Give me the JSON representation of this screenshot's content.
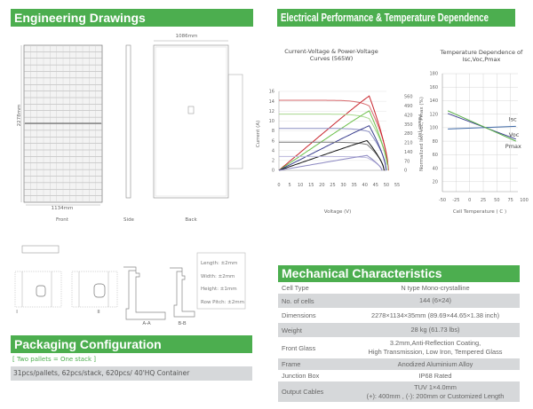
{
  "engineering": {
    "title": "Engineering Drawings",
    "dim_width_back": "1086mm",
    "dim_width_front": "1134mm",
    "dim_height": "2278mm",
    "view_front": "Front",
    "view_side": "Side",
    "view_back": "Back",
    "detail_labels": [
      "I",
      "II",
      "A-A",
      "B-B"
    ],
    "tolerances": [
      "Length: ±2mm",
      "Width: ±2mm",
      "Height: ±1mm",
      "Row Pitch: ±2mm"
    ]
  },
  "electrical": {
    "title": "Electrical Performance & Temperature Dependence"
  },
  "chart_data": [
    {
      "type": "line",
      "title": "Current-Voltage & Power-Voltage Curves (565W)",
      "xlabel": "Voltage (V)",
      "ylabel": "Current (A)",
      "y2label": "Power (W)",
      "xlim": [
        0,
        55
      ],
      "ylim": [
        0,
        16
      ],
      "y2lim": [
        0,
        600
      ],
      "xticks": [
        0,
        5,
        10,
        15,
        20,
        25,
        30,
        35,
        40,
        45,
        50,
        55
      ],
      "yticks": [
        0,
        2,
        4,
        6,
        8,
        10,
        12,
        14,
        16
      ],
      "y2ticks": [
        0,
        70,
        140,
        210,
        280,
        350,
        420,
        490,
        560
      ],
      "grid": true,
      "series": [
        {
          "isc": 14.2,
          "voc": 51,
          "vmp": 42,
          "pmax": 565,
          "color": "#c8232b",
          "light": "#d86a6e"
        },
        {
          "isc": 11.4,
          "voc": 50.8,
          "vmp": 42,
          "pmax": 452,
          "color": "#6cc04a",
          "light": "#a8d88e"
        },
        {
          "isc": 8.5,
          "voc": 50,
          "vmp": 42,
          "pmax": 339,
          "color": "#3b3f8f",
          "light": "#8c8fc4"
        },
        {
          "isc": 5.7,
          "voc": 49,
          "vmp": 41,
          "pmax": 226,
          "color": "#111111",
          "light": "#777777"
        },
        {
          "isc": 2.8,
          "voc": 48,
          "vmp": 41,
          "pmax": 113,
          "color": "#8a86c0",
          "light": "#b9b6dc"
        }
      ]
    },
    {
      "type": "line",
      "title": "Temperature Dependence of Isc,Voc,Pmax",
      "xlabel": "Cell Temperature ( C )",
      "ylabel": "Normalized Isc, Voc, Pmax (%)",
      "xlim": [
        -50,
        100
      ],
      "ylim": [
        0,
        180
      ],
      "xticks": [
        -50,
        -25,
        0,
        25,
        50,
        75,
        100
      ],
      "yticks": [
        20,
        40,
        60,
        80,
        100,
        120,
        140,
        160,
        180
      ],
      "grid": true,
      "series": [
        {
          "name": "Isc",
          "x": [
            -40,
            85
          ],
          "y": [
            98,
            102
          ],
          "color": "#3f6aa8"
        },
        {
          "name": "Voc",
          "x": [
            -40,
            85
          ],
          "y": [
            121,
            83
          ],
          "color": "#3b3f8f"
        },
        {
          "name": "Pmax",
          "x": [
            -40,
            85
          ],
          "y": [
            125,
            80
          ],
          "color": "#5bb04a"
        }
      ]
    }
  ],
  "mechanical": {
    "title": "Mechanical Characteristics",
    "rows": [
      {
        "label": "Cell  Type",
        "value": "N type Mono-crystalline"
      },
      {
        "label": "No. of cells",
        "value": "144 (6×24)"
      },
      {
        "label": "Dimensions",
        "value": "2278×1134×35mm (89.69×44.65×1.38 inch)"
      },
      {
        "label": "Weight",
        "value": "28 kg (61.73 lbs)"
      },
      {
        "label": "Front Glass",
        "value": "3.2mm,Anti-Reflection Coating,",
        "value2": "High Transmission, Low Iron, Tempered Glass"
      },
      {
        "label": "Frame",
        "value": "Anodized Aluminium Alloy"
      },
      {
        "label": "Junction Box",
        "value": "IP68 Rated"
      },
      {
        "label": "Output Cables",
        "value": "TUV  1×4.0mm",
        "value2": "(+): 400mm , (-): 200mm or Customized Length"
      }
    ]
  },
  "packaging": {
    "title": "Packaging Configuration",
    "note": "[ Two pallets = One stack ]",
    "details": "31pcs/pallets, 62pcs/stack, 620pcs/ 40'HQ Container"
  }
}
